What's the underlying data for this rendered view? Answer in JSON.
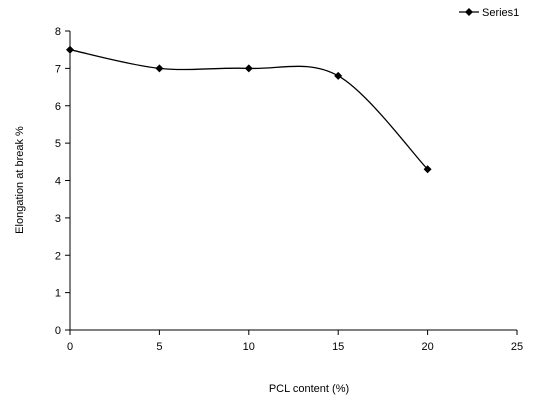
{
  "chart_data": {
    "type": "line",
    "xlabel": "PCL content (%)",
    "ylabel": "Elongation at break %",
    "xlim": [
      0,
      25
    ],
    "ylim": [
      0,
      8
    ],
    "xticks": [
      "0",
      "5",
      "10",
      "15",
      "20",
      "25"
    ],
    "yticks": [
      "0",
      "1",
      "2",
      "3",
      "4",
      "5",
      "6",
      "7",
      "8"
    ],
    "grid": false,
    "legend_position": "top-right",
    "series": [
      {
        "name": "Series1",
        "color": "#000000",
        "marker": "diamond",
        "smooth": true,
        "x": [
          0,
          5,
          10,
          15,
          20
        ],
        "y": [
          7.5,
          7.0,
          7.0,
          6.8,
          4.3
        ]
      }
    ]
  }
}
